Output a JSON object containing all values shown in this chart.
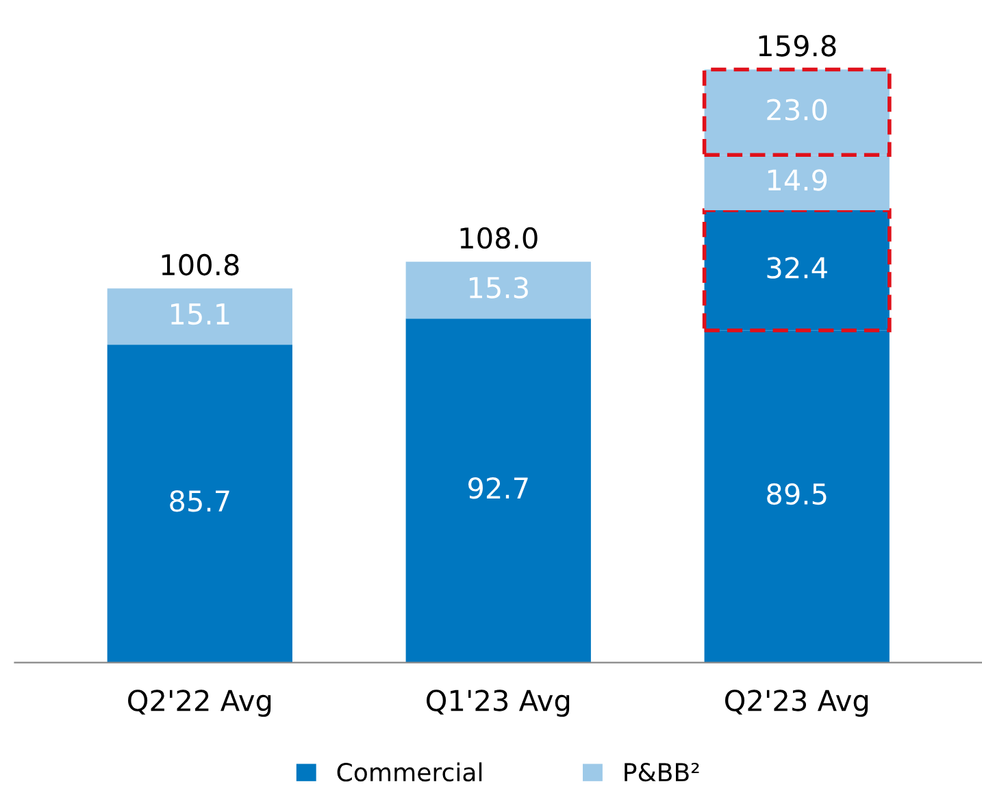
{
  "chart_data": {
    "type": "bar",
    "stacked": true,
    "legend": "bottom",
    "grid": false,
    "categories": [
      "Q2'22 Avg",
      "Q1'23 Avg",
      "Q2'23 Avg"
    ],
    "series": [
      {
        "name": "Commercial",
        "color": "#0077c0",
        "values": [
          85.7,
          92.7,
          89.5
        ],
        "value_labels": [
          "85.7",
          "92.7",
          "89.5"
        ]
      },
      {
        "color": "#0077c0",
        "line_style": "dashed",
        "values": [
          null,
          null,
          32.4
        ],
        "value_labels": [
          null,
          null,
          "32.4"
        ]
      },
      {
        "name": "P&BB²",
        "color": "#9dc9e8",
        "values": [
          15.1,
          15.3,
          14.9
        ],
        "value_labels": [
          "15.1",
          "15.3",
          "14.9"
        ]
      },
      {
        "color": "#9dc9e8",
        "line_style": "dashed",
        "values": [
          null,
          null,
          23.0
        ],
        "value_labels": [
          null,
          null,
          "23.0"
        ]
      }
    ],
    "totals": [
      "100.8",
      "108.0",
      "159.8"
    ]
  }
}
